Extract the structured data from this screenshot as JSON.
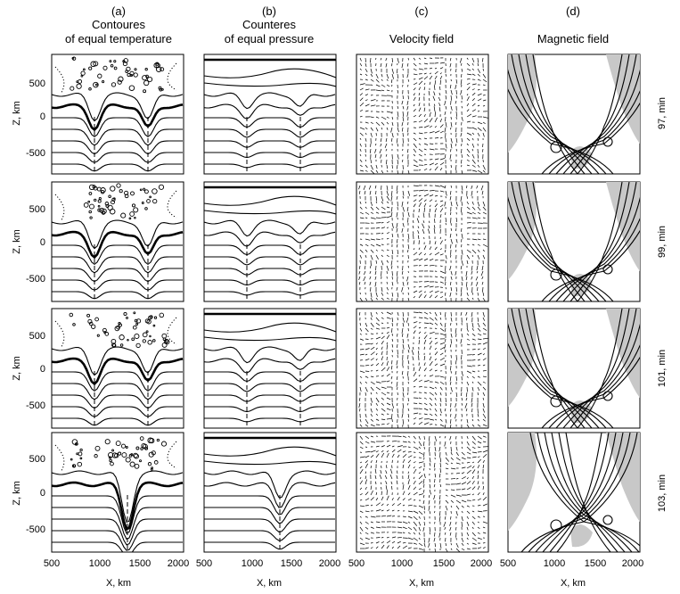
{
  "columns": [
    {
      "id": "a",
      "letter": "(a)",
      "title_line1": "Contoures",
      "title_line2": "of equal temperature"
    },
    {
      "id": "b",
      "letter": "(b)",
      "title_line1": "Counteres",
      "title_line2": "of equal pressure"
    },
    {
      "id": "c",
      "letter": "(c)",
      "title_line1": "Velocity field",
      "title_line2": ""
    },
    {
      "id": "d",
      "letter": "(d)",
      "title_line1": "Magnetic field",
      "title_line2": ""
    }
  ],
  "rows": [
    {
      "time_label": "97, min"
    },
    {
      "time_label": "99, min"
    },
    {
      "time_label": "101, min"
    },
    {
      "time_label": "103, min"
    }
  ],
  "y_axis": {
    "label": "Z, km",
    "ticks": [
      "500",
      "0",
      "-500"
    ]
  },
  "x_axis": {
    "label": "X, km",
    "ticks": [
      "500",
      "1000",
      "1500",
      "2000"
    ]
  }
}
